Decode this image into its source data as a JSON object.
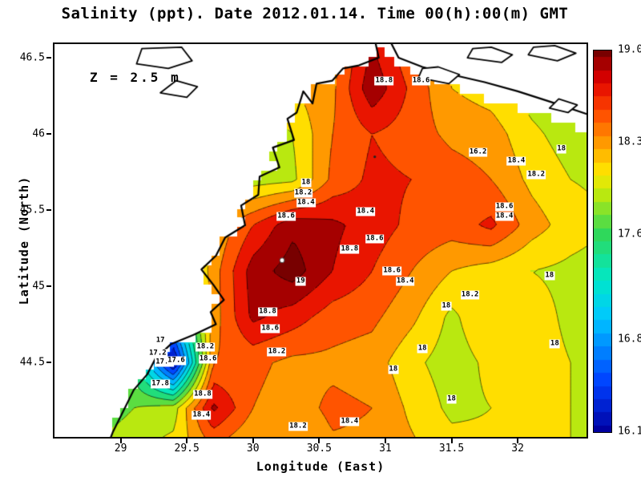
{
  "title": "Salinity (ppt). Date 2012.01.14. Time 00(h):00(m) GMT",
  "annotation": "Z = 2.5 m",
  "axes": {
    "xlabel": "Longitude (East)",
    "ylabel": "Latitude (North)",
    "x_range": [
      28.5,
      32.52
    ],
    "y_range": [
      44.01,
      46.59
    ],
    "x_ticks": [
      {
        "value": 29.0,
        "label": "29"
      },
      {
        "value": 29.5,
        "label": "29.5"
      },
      {
        "value": 30.0,
        "label": "30"
      },
      {
        "value": 30.5,
        "label": "30.5"
      },
      {
        "value": 31.0,
        "label": "31"
      },
      {
        "value": 31.5,
        "label": "31.5"
      },
      {
        "value": 32.0,
        "label": "32"
      }
    ],
    "y_ticks": [
      {
        "value": 44.5,
        "label": "44.5"
      },
      {
        "value": 45.0,
        "label": "45"
      },
      {
        "value": 45.5,
        "label": "45.5"
      },
      {
        "value": 46.0,
        "label": "46"
      },
      {
        "value": 46.5,
        "label": "46.5"
      }
    ]
  },
  "colorbar": {
    "min": 16.1,
    "max": 19.0,
    "tick_labels": [
      "19.0",
      "18.3",
      "17.6",
      "16.8",
      "16.1"
    ],
    "tick_values": [
      19.0,
      18.3,
      17.6,
      16.8,
      16.1
    ],
    "gradient_stops": [
      {
        "p": 0.0,
        "color": "#0000a0"
      },
      {
        "p": 0.13,
        "color": "#0040ff"
      },
      {
        "p": 0.3,
        "color": "#00c8ff"
      },
      {
        "p": 0.4,
        "color": "#00e8c8"
      },
      {
        "p": 0.52,
        "color": "#30d858"
      },
      {
        "p": 0.62,
        "color": "#b8e810"
      },
      {
        "p": 0.68,
        "color": "#ffe800"
      },
      {
        "p": 0.76,
        "color": "#ff9800"
      },
      {
        "p": 0.84,
        "color": "#ff4800"
      },
      {
        "p": 0.92,
        "color": "#e00000"
      },
      {
        "p": 1.0,
        "color": "#780000"
      }
    ]
  },
  "chart_data": {
    "type": "heatmap",
    "field": "salinity_ppt",
    "units": "ppt",
    "depth_m": 2.5,
    "date": "2012.01.14",
    "time": "00(h):00(m) GMT",
    "contour_interval": 0.2,
    "contour_levels_range": [
      16.2,
      19.0
    ],
    "grid": {
      "lon": [
        28.5,
        28.8,
        29.1,
        29.4,
        29.7,
        30.0,
        30.3,
        30.6,
        30.9,
        31.2,
        31.5,
        31.8,
        32.1,
        32.4,
        32.7
      ],
      "lat": [
        43.9,
        44.2,
        44.5,
        44.8,
        45.1,
        45.4,
        45.7,
        46.0,
        46.3,
        46.6
      ],
      "values": [
        [
          17.8,
          17.9,
          18.0,
          18.1,
          18.3,
          18.15,
          18.15,
          18.35,
          18.35,
          18.25,
          18.1,
          18.05,
          18.0,
          18.0,
          18.0
        ],
        [
          17.4,
          17.6,
          17.8,
          17.9,
          18.85,
          18.4,
          18.3,
          18.45,
          18.4,
          18.15,
          17.95,
          18.0,
          18.05,
          18.0,
          17.95
        ],
        [
          17.2,
          17.4,
          17.5,
          16.1,
          18.4,
          18.45,
          18.35,
          18.35,
          18.3,
          18.05,
          17.9,
          18.05,
          18.1,
          18.0,
          17.9
        ],
        [
          17.3,
          17.5,
          17.3,
          17.0,
          18.3,
          18.85,
          18.7,
          18.5,
          18.45,
          18.25,
          17.95,
          18.2,
          18.1,
          17.95,
          17.9
        ],
        [
          17.5,
          17.6,
          17.7,
          17.6,
          18.3,
          18.9,
          19.1,
          18.8,
          18.6,
          18.4,
          18.2,
          18.1,
          18.0,
          17.95,
          17.9
        ],
        [
          17.6,
          17.7,
          17.8,
          17.9,
          18.2,
          18.6,
          18.95,
          18.85,
          18.7,
          18.55,
          18.5,
          18.65,
          18.3,
          18.1,
          18.0
        ],
        [
          17.7,
          17.8,
          17.9,
          18.0,
          18.1,
          17.9,
          17.95,
          18.45,
          18.65,
          18.6,
          18.5,
          18.4,
          18.15,
          18.0,
          17.95
        ],
        [
          17.8,
          17.85,
          17.9,
          17.95,
          18.0,
          17.85,
          18.0,
          18.4,
          18.6,
          18.5,
          18.35,
          18.3,
          18.05,
          17.9,
          17.85
        ],
        [
          17.8,
          17.85,
          17.9,
          17.9,
          17.95,
          17.9,
          18.2,
          18.35,
          18.95,
          18.55,
          18.2,
          18.1,
          17.9,
          17.8,
          17.75
        ],
        [
          17.8,
          17.8,
          17.85,
          17.85,
          17.9,
          17.9,
          18.1,
          18.3,
          18.8,
          18.4,
          18.1,
          18.0,
          17.85,
          17.75,
          17.7
        ]
      ]
    },
    "contour_labels": [
      [
        30.99,
        46.35,
        "18.8"
      ],
      [
        31.27,
        46.35,
        "18.6"
      ],
      [
        31.7,
        45.88,
        "16.2"
      ],
      [
        31.99,
        45.82,
        "18.4"
      ],
      [
        32.14,
        45.73,
        "18.2"
      ],
      [
        32.33,
        45.9,
        "18"
      ],
      [
        30.4,
        45.68,
        "18"
      ],
      [
        30.38,
        45.61,
        "18.2"
      ],
      [
        30.4,
        45.55,
        "18.4"
      ],
      [
        30.25,
        45.46,
        "18.6"
      ],
      [
        30.85,
        45.49,
        "18.4"
      ],
      [
        31.9,
        45.52,
        "18.6"
      ],
      [
        31.9,
        45.46,
        "18.4"
      ],
      [
        30.92,
        45.31,
        "18.6"
      ],
      [
        30.73,
        45.24,
        "18.8"
      ],
      [
        31.05,
        45.1,
        "18.6"
      ],
      [
        31.15,
        45.03,
        "18.4"
      ],
      [
        30.36,
        45.03,
        "19"
      ],
      [
        31.64,
        44.94,
        "18.2"
      ],
      [
        31.46,
        44.87,
        "18"
      ],
      [
        32.24,
        45.07,
        "18"
      ],
      [
        30.11,
        44.83,
        "18.8"
      ],
      [
        30.13,
        44.72,
        "18.6"
      ],
      [
        29.3,
        44.64,
        "17"
      ],
      [
        29.28,
        44.56,
        "17.2"
      ],
      [
        29.33,
        44.5,
        "17.4"
      ],
      [
        29.42,
        44.51,
        "17.6"
      ],
      [
        29.3,
        44.36,
        "17.8"
      ],
      [
        29.66,
        44.52,
        "18.6"
      ],
      [
        29.64,
        44.6,
        "18.2"
      ],
      [
        30.18,
        44.57,
        "18.2"
      ],
      [
        31.28,
        44.59,
        "18"
      ],
      [
        31.06,
        44.45,
        "18"
      ],
      [
        32.28,
        44.62,
        "18"
      ],
      [
        29.62,
        44.29,
        "18.8"
      ],
      [
        29.61,
        44.15,
        "18.4"
      ],
      [
        30.34,
        44.08,
        "18.2"
      ],
      [
        30.73,
        44.11,
        "18.4"
      ],
      [
        31.5,
        44.26,
        "18"
      ]
    ],
    "markers": [
      {
        "lon": 30.22,
        "lat": 45.17,
        "style": "white-dot"
      },
      {
        "lon": 30.92,
        "lat": 45.85,
        "style": "black-dot"
      }
    ]
  },
  "geometry": {
    "sea_mask_polygon": [
      [
        30.9,
        46.7
      ],
      [
        30.93,
        46.5
      ],
      [
        30.78,
        46.44
      ],
      [
        30.66,
        46.42
      ],
      [
        30.58,
        46.33
      ],
      [
        30.46,
        46.31
      ],
      [
        30.43,
        46.18
      ],
      [
        30.36,
        46.26
      ],
      [
        30.31,
        46.12
      ],
      [
        30.24,
        46.08
      ],
      [
        30.29,
        45.95
      ],
      [
        30.13,
        45.9
      ],
      [
        30.18,
        45.77
      ],
      [
        30.03,
        45.71
      ],
      [
        30.02,
        45.59
      ],
      [
        29.89,
        45.52
      ],
      [
        29.92,
        45.39
      ],
      [
        29.77,
        45.31
      ],
      [
        29.7,
        45.19
      ],
      [
        29.59,
        45.1
      ],
      [
        29.68,
        45.0
      ],
      [
        29.76,
        44.9
      ],
      [
        29.66,
        44.82
      ],
      [
        29.7,
        44.74
      ],
      [
        29.53,
        44.66
      ],
      [
        29.36,
        44.6
      ],
      [
        29.24,
        44.5
      ],
      [
        29.18,
        44.4
      ],
      [
        29.08,
        44.3
      ],
      [
        29.0,
        44.16
      ],
      [
        28.92,
        44.02
      ],
      [
        28.88,
        43.85
      ],
      [
        32.9,
        43.85
      ],
      [
        32.9,
        45.98
      ],
      [
        32.5,
        46.03
      ],
      [
        32.2,
        46.12
      ],
      [
        31.9,
        46.19
      ],
      [
        31.55,
        46.29
      ],
      [
        31.2,
        46.41
      ],
      [
        31.02,
        46.49
      ],
      [
        30.9,
        46.7
      ]
    ],
    "coastlines": [
      [
        [
          30.92,
          46.62
        ],
        [
          30.95,
          46.5
        ],
        [
          30.8,
          46.45
        ],
        [
          30.68,
          46.43
        ],
        [
          30.6,
          46.35
        ],
        [
          30.48,
          46.33
        ],
        [
          30.45,
          46.2
        ],
        [
          30.38,
          46.28
        ],
        [
          30.33,
          46.14
        ],
        [
          30.26,
          46.1
        ],
        [
          30.31,
          45.96
        ],
        [
          30.15,
          45.91
        ],
        [
          30.2,
          45.78
        ],
        [
          30.05,
          45.72
        ],
        [
          30.04,
          45.6
        ],
        [
          29.91,
          45.53
        ],
        [
          29.94,
          45.4
        ],
        [
          29.79,
          45.32
        ],
        [
          29.72,
          45.2
        ],
        [
          29.61,
          45.11
        ],
        [
          29.7,
          45.01
        ],
        [
          29.78,
          44.91
        ],
        [
          29.68,
          44.83
        ],
        [
          29.72,
          44.75
        ],
        [
          29.55,
          44.68
        ],
        [
          29.38,
          44.62
        ],
        [
          29.26,
          44.52
        ],
        [
          29.2,
          44.42
        ],
        [
          29.1,
          44.32
        ],
        [
          29.02,
          44.18
        ],
        [
          28.94,
          44.04
        ],
        [
          28.9,
          43.95
        ]
      ],
      [
        [
          31.03,
          46.62
        ],
        [
          31.1,
          46.5
        ],
        [
          31.28,
          46.44
        ],
        [
          31.5,
          46.39
        ],
        [
          31.75,
          46.34
        ],
        [
          32.0,
          46.28
        ],
        [
          32.25,
          46.21
        ],
        [
          32.56,
          46.12
        ]
      ]
    ],
    "lakes": [
      [
        [
          29.12,
          46.46
        ],
        [
          29.36,
          46.43
        ],
        [
          29.54,
          46.48
        ],
        [
          29.46,
          46.57
        ],
        [
          29.16,
          46.56
        ]
      ],
      [
        [
          29.3,
          46.27
        ],
        [
          29.5,
          46.24
        ],
        [
          29.58,
          46.31
        ],
        [
          29.42,
          46.35
        ]
      ],
      [
        [
          31.62,
          46.5
        ],
        [
          31.88,
          46.47
        ],
        [
          31.96,
          46.52
        ],
        [
          31.8,
          46.57
        ],
        [
          31.66,
          46.56
        ]
      ],
      [
        [
          32.08,
          46.52
        ],
        [
          32.3,
          46.48
        ],
        [
          32.44,
          46.53
        ],
        [
          32.28,
          46.58
        ],
        [
          32.12,
          46.57
        ]
      ],
      [
        [
          31.25,
          46.37
        ],
        [
          31.48,
          46.33
        ],
        [
          31.56,
          46.39
        ],
        [
          31.4,
          46.44
        ],
        [
          31.28,
          46.43
        ]
      ],
      [
        [
          32.24,
          46.17
        ],
        [
          32.38,
          46.14
        ],
        [
          32.45,
          46.19
        ],
        [
          32.31,
          46.23
        ]
      ]
    ]
  }
}
